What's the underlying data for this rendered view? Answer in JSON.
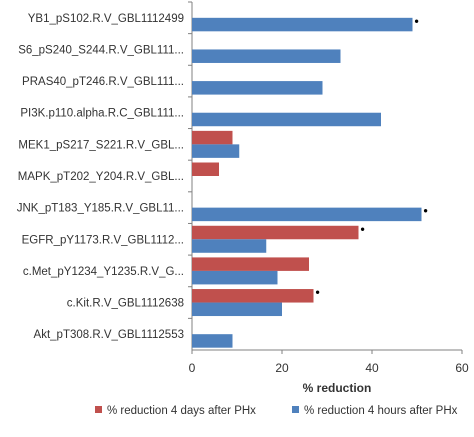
{
  "chart_data": {
    "type": "bar",
    "orientation": "horizontal",
    "categories": [
      "YB1_pS102.R.V_GBL1112499",
      "S6_pS240_S244.R.V_GBL111...",
      "PRAS40_pT246.R.V_GBL111...",
      "PI3K.p110.alpha.R.C_GBL111...",
      "MEK1_pS217_S221.R.V_GBL...",
      "MAPK_pT202_Y204.R.V_GBL...",
      "JNK_pT183_Y185.R.V_GBL11...",
      "EGFR_pY1173.R.V_GBL1112...",
      "c.Met_pY1234_Y1235.R.V_G...",
      "c.Kit.R.V_GBL1112638",
      "Akt_pT308.R.V_GBL1112553"
    ],
    "series": [
      {
        "name": "% reduction 4 days after PHx",
        "color": "#c0504d",
        "values": [
          0,
          0,
          0,
          0,
          9,
          6,
          0,
          37,
          26,
          27,
          0
        ]
      },
      {
        "name": "% reduction 4 hours after PHx",
        "color": "#4f81bd",
        "values": [
          49,
          33,
          29,
          42,
          10.5,
          0,
          51,
          16.5,
          19,
          20,
          9
        ]
      }
    ],
    "significance": [
      {
        "category_index": 0,
        "series_index": 1,
        "symbol": "•"
      },
      {
        "category_index": 6,
        "series_index": 1,
        "symbol": "•"
      },
      {
        "category_index": 7,
        "series_index": 0,
        "symbol": "•"
      },
      {
        "category_index": 9,
        "series_index": 0,
        "symbol": "•"
      }
    ],
    "xlabel": "% reduction",
    "ylabel": "",
    "xlim": [
      0,
      60
    ],
    "xticks": [
      0,
      20,
      40,
      60
    ],
    "grid": false,
    "legend_position": "bottom"
  }
}
